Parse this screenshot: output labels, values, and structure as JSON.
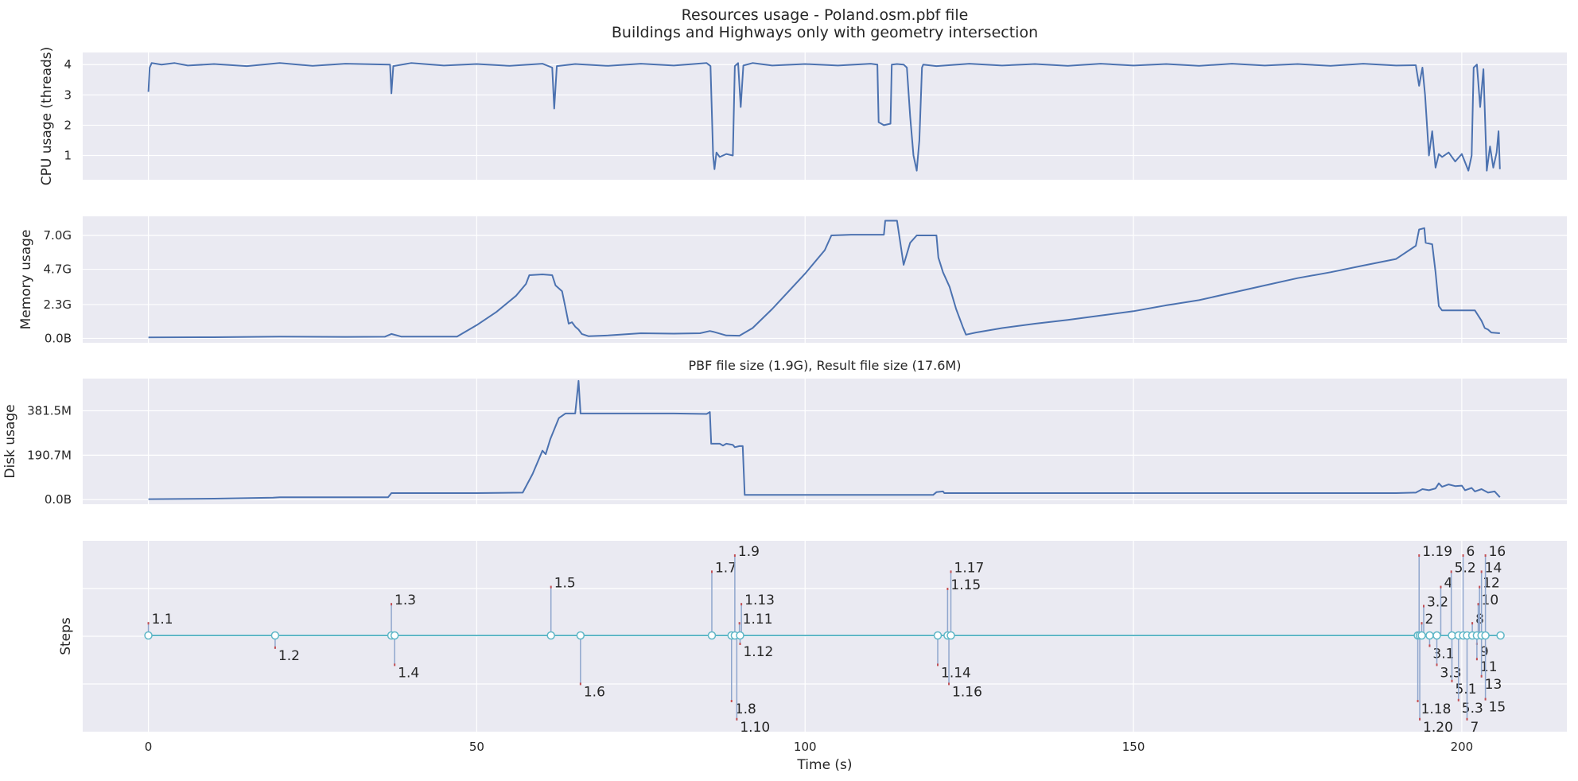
{
  "title": "Resources usage - Poland.osm.pbf file",
  "subtitle": "Buildings and Highways only with geometry intersection",
  "colors": {
    "panel_bg": "#eaeaf2",
    "grid": "#ffffff",
    "line": "#4c72b0",
    "steps_line": "#5fb7c7",
    "stem": "#8fa6cd",
    "red_tip": "#c44e52"
  },
  "chart_data": [
    {
      "type": "line",
      "ylabel": "CPU usage (threads)",
      "x_range": [
        -10,
        216
      ],
      "ylim": [
        0.2,
        4.4
      ],
      "yticks": [
        1,
        2,
        3,
        4
      ],
      "yticklabels": [
        "1",
        "2",
        "3",
        "4"
      ],
      "grid": true,
      "points": [
        [
          0,
          3.1
        ],
        [
          0.2,
          3.9
        ],
        [
          0.5,
          4.05
        ],
        [
          2,
          4.0
        ],
        [
          4,
          4.05
        ],
        [
          6,
          3.97
        ],
        [
          10,
          4.02
        ],
        [
          15,
          3.95
        ],
        [
          20,
          4.05
        ],
        [
          25,
          3.96
        ],
        [
          30,
          4.03
        ],
        [
          36.8,
          4.0
        ],
        [
          37,
          3.05
        ],
        [
          37.3,
          3.95
        ],
        [
          40,
          4.05
        ],
        [
          45,
          3.97
        ],
        [
          50,
          4.02
        ],
        [
          55,
          3.96
        ],
        [
          60,
          4.03
        ],
        [
          61.5,
          3.9
        ],
        [
          61.8,
          2.55
        ],
        [
          62.2,
          3.95
        ],
        [
          65,
          4.02
        ],
        [
          70,
          3.96
        ],
        [
          75,
          4.03
        ],
        [
          80,
          3.97
        ],
        [
          85,
          4.05
        ],
        [
          85.6,
          3.95
        ],
        [
          86.0,
          1.0
        ],
        [
          86.2,
          0.55
        ],
        [
          86.5,
          1.1
        ],
        [
          87,
          0.95
        ],
        [
          88,
          1.05
        ],
        [
          89,
          1.0
        ],
        [
          89.3,
          3.95
        ],
        [
          89.8,
          4.05
        ],
        [
          90.2,
          2.6
        ],
        [
          90.6,
          3.97
        ],
        [
          92,
          4.05
        ],
        [
          95,
          3.97
        ],
        [
          100,
          4.02
        ],
        [
          105,
          3.97
        ],
        [
          110,
          4.03
        ],
        [
          111,
          4.0
        ],
        [
          111.2,
          2.1
        ],
        [
          112,
          2.0
        ],
        [
          113,
          2.05
        ],
        [
          113.2,
          4.0
        ],
        [
          114,
          4.02
        ],
        [
          115,
          4.0
        ],
        [
          115.5,
          3.9
        ],
        [
          116,
          2.3
        ],
        [
          116.5,
          1.0
        ],
        [
          117,
          0.5
        ],
        [
          117.4,
          1.5
        ],
        [
          117.8,
          3.9
        ],
        [
          118,
          4.0
        ],
        [
          120,
          3.95
        ],
        [
          125,
          4.03
        ],
        [
          130,
          3.97
        ],
        [
          135,
          4.02
        ],
        [
          140,
          3.96
        ],
        [
          145,
          4.03
        ],
        [
          150,
          3.97
        ],
        [
          155,
          4.02
        ],
        [
          160,
          3.96
        ],
        [
          165,
          4.03
        ],
        [
          170,
          3.97
        ],
        [
          175,
          4.02
        ],
        [
          180,
          3.96
        ],
        [
          185,
          4.03
        ],
        [
          190,
          3.97
        ],
        [
          193,
          3.98
        ],
        [
          193.5,
          3.3
        ],
        [
          194,
          3.9
        ],
        [
          194.4,
          3.0
        ],
        [
          195,
          1.0
        ],
        [
          195.5,
          1.8
        ],
        [
          196,
          0.6
        ],
        [
          196.5,
          1.05
        ],
        [
          197,
          0.95
        ],
        [
          198,
          1.1
        ],
        [
          199,
          0.8
        ],
        [
          200,
          1.05
        ],
        [
          201,
          0.5
        ],
        [
          201.5,
          1.0
        ],
        [
          201.8,
          3.9
        ],
        [
          202.3,
          4.0
        ],
        [
          202.8,
          2.6
        ],
        [
          203.3,
          3.85
        ],
        [
          203.8,
          0.5
        ],
        [
          204.3,
          1.3
        ],
        [
          204.8,
          0.6
        ],
        [
          205.3,
          1.1
        ],
        [
          205.6,
          1.8
        ],
        [
          205.8,
          0.55
        ]
      ]
    },
    {
      "type": "line",
      "ylabel": "Memory usage",
      "x_range": [
        -10,
        216
      ],
      "ylim": [
        -0.3,
        8.3
      ],
      "yticks": [
        0,
        2.3,
        4.7,
        7.0
      ],
      "yticklabels": [
        "0.0B",
        "2.3G",
        "4.7G",
        "7.0G"
      ],
      "grid": true,
      "points": [
        [
          0,
          0.06
        ],
        [
          10,
          0.08
        ],
        [
          20,
          0.12
        ],
        [
          30,
          0.1
        ],
        [
          36,
          0.11
        ],
        [
          37,
          0.3
        ],
        [
          38.5,
          0.12
        ],
        [
          47,
          0.12
        ],
        [
          50,
          0.9
        ],
        [
          53,
          1.8
        ],
        [
          56,
          2.9
        ],
        [
          57.5,
          3.7
        ],
        [
          58,
          4.3
        ],
        [
          60,
          4.35
        ],
        [
          61.5,
          4.3
        ],
        [
          62,
          3.6
        ],
        [
          63,
          3.2
        ],
        [
          63.5,
          2.1
        ],
        [
          64,
          1.0
        ],
        [
          64.5,
          1.1
        ],
        [
          65,
          0.8
        ],
        [
          65.5,
          0.6
        ],
        [
          66,
          0.3
        ],
        [
          67,
          0.15
        ],
        [
          70,
          0.2
        ],
        [
          75,
          0.35
        ],
        [
          80,
          0.32
        ],
        [
          84,
          0.35
        ],
        [
          85.5,
          0.5
        ],
        [
          86,
          0.45
        ],
        [
          88,
          0.2
        ],
        [
          90,
          0.18
        ],
        [
          92,
          0.7
        ],
        [
          95,
          2.0
        ],
        [
          100,
          4.4
        ],
        [
          103,
          6.0
        ],
        [
          104,
          7.0
        ],
        [
          107,
          7.05
        ],
        [
          112,
          7.05
        ],
        [
          112.2,
          8.0
        ],
        [
          114,
          8.0
        ],
        [
          115,
          5.0
        ],
        [
          116,
          6.5
        ],
        [
          117,
          7.0
        ],
        [
          120,
          7.0
        ],
        [
          120.3,
          5.5
        ],
        [
          121,
          4.5
        ],
        [
          122,
          3.5
        ],
        [
          123,
          2.0
        ],
        [
          124,
          0.8
        ],
        [
          124.5,
          0.25
        ],
        [
          126,
          0.4
        ],
        [
          130,
          0.7
        ],
        [
          135,
          1.0
        ],
        [
          140,
          1.25
        ],
        [
          145,
          1.55
        ],
        [
          150,
          1.85
        ],
        [
          155,
          2.25
        ],
        [
          160,
          2.6
        ],
        [
          165,
          3.1
        ],
        [
          170,
          3.6
        ],
        [
          175,
          4.1
        ],
        [
          180,
          4.5
        ],
        [
          185,
          4.95
        ],
        [
          190,
          5.4
        ],
        [
          193,
          6.3
        ],
        [
          193.5,
          7.4
        ],
        [
          194.3,
          7.5
        ],
        [
          194.5,
          6.5
        ],
        [
          195.5,
          6.4
        ],
        [
          196,
          4.5
        ],
        [
          196.5,
          2.2
        ],
        [
          197,
          1.9
        ],
        [
          200,
          1.9
        ],
        [
          202,
          1.9
        ],
        [
          203,
          1.2
        ],
        [
          203.5,
          0.7
        ],
        [
          204,
          0.6
        ],
        [
          204.5,
          0.4
        ],
        [
          205.8,
          0.35
        ]
      ]
    },
    {
      "type": "line",
      "title": "PBF file size (1.9G), Result file size (17.6M)",
      "ylabel": "Disk usage",
      "x_range": [
        -10,
        216
      ],
      "ylim": [
        -20,
        520
      ],
      "yticks": [
        0,
        190.7,
        381.5
      ],
      "yticklabels": [
        "0.0B",
        "190.7M",
        "381.5M"
      ],
      "grid": true,
      "points": [
        [
          0,
          2
        ],
        [
          10,
          4
        ],
        [
          19,
          8
        ],
        [
          20,
          10
        ],
        [
          30,
          10
        ],
        [
          36.5,
          10
        ],
        [
          37,
          28
        ],
        [
          40,
          28
        ],
        [
          50,
          28
        ],
        [
          57,
          30
        ],
        [
          58.5,
          110
        ],
        [
          60,
          210
        ],
        [
          60.5,
          195
        ],
        [
          61.2,
          260
        ],
        [
          62.5,
          350
        ],
        [
          63.5,
          370
        ],
        [
          65,
          370
        ],
        [
          65.5,
          510
        ],
        [
          65.8,
          370
        ],
        [
          70,
          370
        ],
        [
          80,
          370
        ],
        [
          85,
          368
        ],
        [
          85.5,
          376
        ],
        [
          85.7,
          240
        ],
        [
          87,
          240
        ],
        [
          87.5,
          232
        ],
        [
          88,
          240
        ],
        [
          89,
          235
        ],
        [
          89.3,
          225
        ],
        [
          90,
          230
        ],
        [
          90.5,
          230
        ],
        [
          90.8,
          20
        ],
        [
          95,
          20
        ],
        [
          105,
          20
        ],
        [
          115,
          20
        ],
        [
          119.5,
          20
        ],
        [
          120,
          32
        ],
        [
          121,
          35
        ],
        [
          121.2,
          28
        ],
        [
          125,
          28
        ],
        [
          135,
          28
        ],
        [
          150,
          28
        ],
        [
          165,
          28
        ],
        [
          180,
          28
        ],
        [
          190,
          28
        ],
        [
          193,
          30
        ],
        [
          194,
          45
        ],
        [
          195,
          40
        ],
        [
          196,
          48
        ],
        [
          196.5,
          70
        ],
        [
          197,
          55
        ],
        [
          198,
          65
        ],
        [
          199,
          58
        ],
        [
          200,
          60
        ],
        [
          200.5,
          40
        ],
        [
          201.5,
          50
        ],
        [
          202,
          35
        ],
        [
          203,
          45
        ],
        [
          204,
          30
        ],
        [
          205,
          35
        ],
        [
          205.8,
          10
        ]
      ]
    },
    {
      "type": "timeline",
      "ylabel": "Steps",
      "xlabel": "Time (s)",
      "x_range": [
        -10,
        216
      ],
      "ylim": [
        -4.8,
        4.1
      ],
      "xticks": [
        0,
        50,
        100,
        150,
        200
      ],
      "xticklabels": [
        "0",
        "50",
        "100",
        "150",
        "200"
      ],
      "grid": true,
      "baseline_x": [
        0,
        19.3,
        37.0,
        37.5,
        61.3,
        65.8,
        85.8,
        88.8,
        89.3,
        90.1,
        120.2,
        121.7,
        122.2,
        193.3,
        193.6,
        193.9,
        195.1,
        196.2,
        198.5,
        199.5,
        200.2,
        200.8,
        201.6,
        202.3,
        203.0,
        203.6,
        205.9
      ],
      "steps": [
        {
          "label": "1.1",
          "x": 0,
          "level": 1.4
        },
        {
          "label": "1.2",
          "x": 19.3,
          "level": -1.4
        },
        {
          "label": "1.3",
          "x": 37.0,
          "level": 3.4
        },
        {
          "label": "1.4",
          "x": 37.5,
          "level": -3.2
        },
        {
          "label": "1.5",
          "x": 61.3,
          "level": 5.2
        },
        {
          "label": "1.6",
          "x": 65.8,
          "level": -5.2
        },
        {
          "label": "1.7",
          "x": 85.8,
          "level": 6.8
        },
        {
          "label": "1.8",
          "x": 88.8,
          "level": -7.0
        },
        {
          "label": "1.9",
          "x": 89.3,
          "level": 8.5
        },
        {
          "label": "1.10",
          "x": 89.6,
          "level": -8.9
        },
        {
          "label": "1.11",
          "x": 90.0,
          "level": 1.4
        },
        {
          "label": "1.12",
          "x": 90.1,
          "level": -1.0
        },
        {
          "label": "1.13",
          "x": 90.3,
          "level": 3.4
        },
        {
          "label": "1.14",
          "x": 120.2,
          "level": -3.2
        },
        {
          "label": "1.15",
          "x": 121.7,
          "level": 5.0
        },
        {
          "label": "1.16",
          "x": 121.9,
          "level": -5.2
        },
        {
          "label": "1.17",
          "x": 122.2,
          "level": 6.8
        },
        {
          "label": "1.18",
          "x": 193.3,
          "level": -7.0
        },
        {
          "label": "1.19",
          "x": 193.5,
          "level": 8.5
        },
        {
          "label": "1.20",
          "x": 193.6,
          "level": -8.9
        },
        {
          "label": "2",
          "x": 193.9,
          "level": 1.4
        },
        {
          "label": "3.1",
          "x": 195.1,
          "level": -1.2
        },
        {
          "label": "3.2",
          "x": 194.2,
          "level": 3.2
        },
        {
          "label": "3.3",
          "x": 196.2,
          "level": -3.2
        },
        {
          "label": "4",
          "x": 196.8,
          "level": 5.2
        },
        {
          "label": "5.1",
          "x": 198.5,
          "level": -4.9
        },
        {
          "label": "5.2",
          "x": 198.4,
          "level": 6.8
        },
        {
          "label": "5.3",
          "x": 199.5,
          "level": -6.9
        },
        {
          "label": "6",
          "x": 200.2,
          "level": 8.5
        },
        {
          "label": "7",
          "x": 200.8,
          "level": -8.9
        },
        {
          "label": "8",
          "x": 201.6,
          "level": 1.4
        },
        {
          "label": "9",
          "x": 202.3,
          "level": -1.0
        },
        {
          "label": "10",
          "x": 202.5,
          "level": 3.4
        },
        {
          "label": "11",
          "x": 202.3,
          "level": -2.6
        },
        {
          "label": "12",
          "x": 202.7,
          "level": 5.2
        },
        {
          "label": "13",
          "x": 203.0,
          "level": -4.4
        },
        {
          "label": "14",
          "x": 203.0,
          "level": 6.8
        },
        {
          "label": "15",
          "x": 203.6,
          "level": -6.8
        },
        {
          "label": "16",
          "x": 203.6,
          "level": 8.5
        }
      ]
    }
  ]
}
